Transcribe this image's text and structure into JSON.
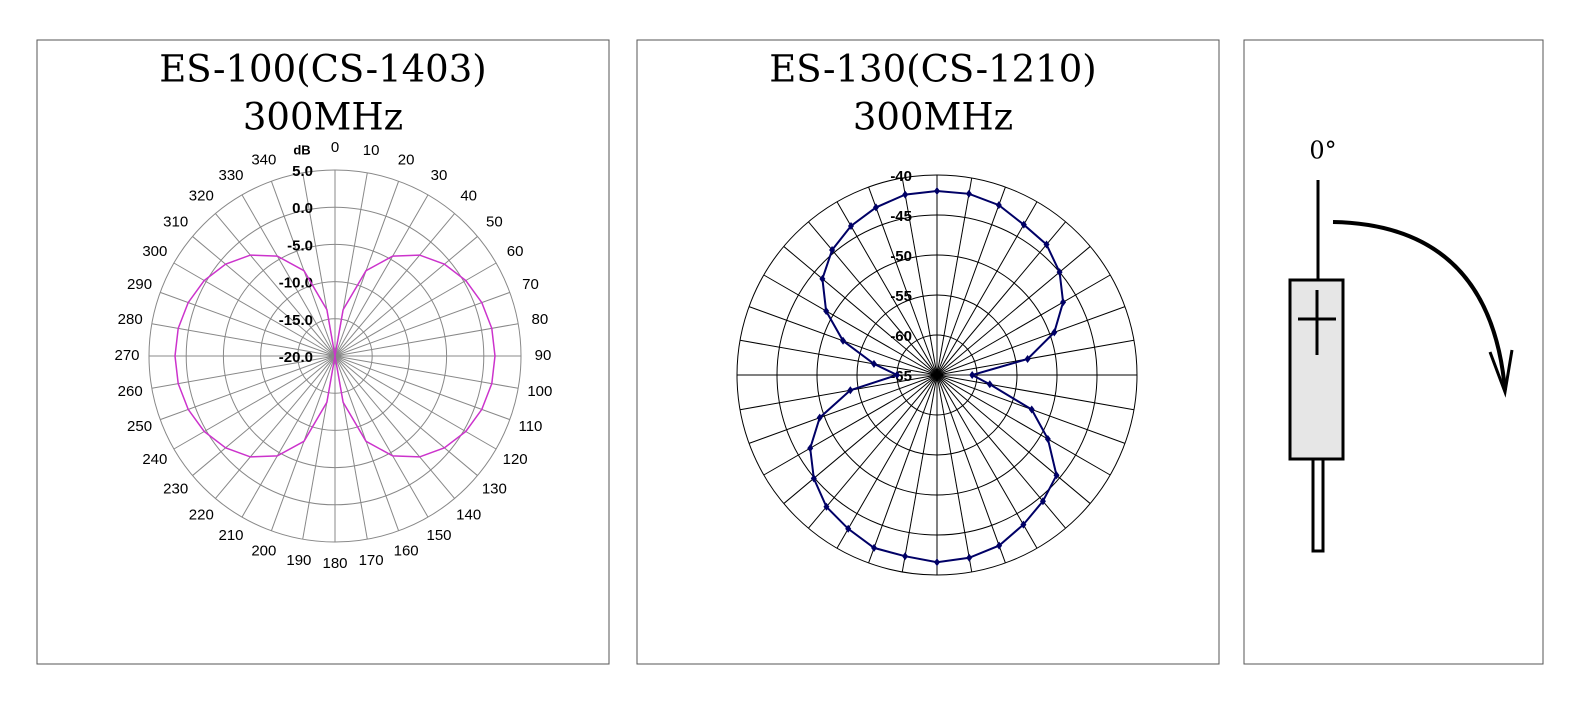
{
  "chart_data": [
    {
      "type": "polar",
      "title": "ES-100(CS-1403)",
      "subtitle": "300MHz",
      "y_label": "dB",
      "color": "#cc33cc",
      "grid_color": "#888888",
      "x": [
        0,
        10,
        20,
        30,
        40,
        50,
        60,
        70,
        80,
        90,
        100,
        110,
        120,
        130,
        140,
        150,
        160,
        170,
        180,
        190,
        200,
        210,
        220,
        230,
        240,
        250,
        260,
        270,
        280,
        290,
        300,
        310,
        320,
        330,
        340,
        350
      ],
      "values": [
        -20,
        -13.7,
        -7.8,
        -4.5,
        -2.3,
        -0.8,
        0.3,
        1,
        1.4,
        1.5,
        1.4,
        1,
        0.3,
        -0.8,
        -2.3,
        -4.5,
        -7.8,
        -13.7,
        -20,
        -13.7,
        -7.8,
        -4.5,
        -2.3,
        -0.8,
        0.3,
        1,
        1.4,
        1.5,
        1.4,
        1,
        0.3,
        -0.8,
        -2.3,
        -4.5,
        -7.8,
        -13.7
      ],
      "ylim": [
        -20,
        5
      ],
      "yticks": [
        {
          "value": -20,
          "label": "-20.0"
        },
        {
          "value": -15,
          "label": "-15.0"
        },
        {
          "value": -10,
          "label": "-10.0"
        },
        {
          "value": -5,
          "label": "-5.0"
        },
        {
          "value": 0,
          "label": "0.0"
        },
        {
          "value": 5,
          "label": "5.0"
        }
      ],
      "xticks": [
        0,
        10,
        20,
        30,
        40,
        50,
        60,
        70,
        80,
        90,
        100,
        110,
        120,
        130,
        140,
        150,
        160,
        170,
        180,
        190,
        200,
        210,
        220,
        230,
        240,
        250,
        260,
        270,
        280,
        290,
        300,
        310,
        320,
        330,
        340
      ],
      "markers": false
    },
    {
      "type": "polar",
      "title": "ES-130(CS-1210)",
      "subtitle": "300MHz",
      "color": "#000066",
      "grid_color": "#000000",
      "x": [
        0,
        10,
        20,
        30,
        40,
        50,
        60,
        70,
        80,
        90,
        100,
        110,
        120,
        130,
        140,
        150,
        160,
        170,
        180,
        190,
        200,
        210,
        220,
        230,
        240,
        250,
        260,
        270,
        280,
        290,
        300,
        310,
        320,
        330,
        340,
        350
      ],
      "values": [
        -42,
        -42,
        -42.4,
        -43.3,
        -43.7,
        -45,
        -46.8,
        -49.4,
        -53.5,
        -60.6,
        -58.3,
        -52.4,
        -49,
        -45.5,
        -44.4,
        -43.4,
        -42.3,
        -41.8,
        -41.6,
        -42,
        -42,
        -42.8,
        -43.5,
        -44.9,
        -46.7,
        -49.4,
        -54,
        -60,
        -57,
        -52.5,
        -49,
        -46.3,
        -44.6,
        -43.5,
        -42.7,
        -42.1
      ],
      "ylim": [
        -65,
        -40
      ],
      "yticks": [
        -40,
        -45,
        -50,
        -55,
        -60,
        -65
      ],
      "markers": true
    }
  ],
  "diagram": {
    "label": "0°"
  }
}
